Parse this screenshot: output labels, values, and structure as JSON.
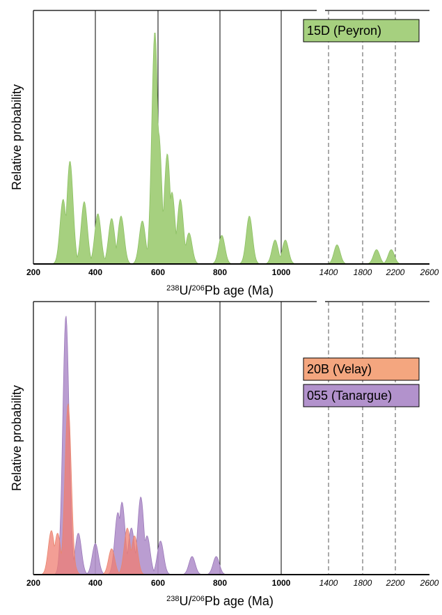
{
  "colors": {
    "peyron": "#a6d07f",
    "velay": "#f4a67f",
    "tanargue": "#b292cc",
    "velay_fill": "#ef7d72",
    "axis": "#000000"
  },
  "chart_data": [
    {
      "type": "area",
      "ylabel": "Relative probability",
      "xlabel_parts": [
        "238",
        "U/",
        "206",
        "Pb age (Ma)"
      ],
      "tick_labels_bold": [
        "200",
        "400",
        "600",
        "800",
        "1000"
      ],
      "tick_labels_italic": [
        "1400",
        "1800",
        "2200",
        "2600"
      ],
      "legend": [
        "15D (Peyron)"
      ],
      "series": [
        {
          "name": "15D (Peyron)",
          "peaks": [
            {
              "x": 296,
              "h": 0.27
            },
            {
              "x": 318,
              "h": 0.43
            },
            {
              "x": 364,
              "h": 0.26
            },
            {
              "x": 408,
              "h": 0.21
            },
            {
              "x": 452,
              "h": 0.19
            },
            {
              "x": 482,
              "h": 0.2
            },
            {
              "x": 550,
              "h": 0.18
            },
            {
              "x": 590,
              "h": 0.97
            },
            {
              "x": 602,
              "h": 0.55
            },
            {
              "x": 630,
              "h": 0.46
            },
            {
              "x": 645,
              "h": 0.3
            },
            {
              "x": 672,
              "h": 0.27
            },
            {
              "x": 700,
              "h": 0.13
            },
            {
              "x": 806,
              "h": 0.12
            },
            {
              "x": 896,
              "h": 0.2
            },
            {
              "x": 980,
              "h": 0.1
            },
            {
              "x": 1035,
              "h": 0.1
            },
            {
              "x": 1500,
              "h": 0.08
            },
            {
              "x": 1970,
              "h": 0.06
            },
            {
              "x": 2150,
              "h": 0.06
            }
          ]
        }
      ]
    },
    {
      "type": "area",
      "ylabel": "Relative probability",
      "xlabel_parts": [
        "238",
        "U/",
        "206",
        "Pb age (Ma)"
      ],
      "tick_labels_bold": [
        "200",
        "400",
        "600",
        "800",
        "1000"
      ],
      "tick_labels_italic": [
        "1400",
        "1800",
        "2200",
        "2600"
      ],
      "legend": [
        "20B (Velay)",
        "055 (Tanargue)"
      ],
      "series": [
        {
          "name": "055 (Tanargue)",
          "peaks": [
            {
              "x": 305,
              "h": 1.0
            },
            {
              "x": 345,
              "h": 0.16
            },
            {
              "x": 400,
              "h": 0.12
            },
            {
              "x": 472,
              "h": 0.24
            },
            {
              "x": 485,
              "h": 0.28
            },
            {
              "x": 515,
              "h": 0.18
            },
            {
              "x": 545,
              "h": 0.3
            },
            {
              "x": 565,
              "h": 0.15
            },
            {
              "x": 608,
              "h": 0.13
            },
            {
              "x": 710,
              "h": 0.07
            },
            {
              "x": 788,
              "h": 0.07
            }
          ]
        },
        {
          "name": "20B (Velay)",
          "peaks": [
            {
              "x": 258,
              "h": 0.17
            },
            {
              "x": 278,
              "h": 0.16
            },
            {
              "x": 312,
              "h": 0.66
            },
            {
              "x": 322,
              "h": 0.1
            },
            {
              "x": 452,
              "h": 0.1
            },
            {
              "x": 502,
              "h": 0.18
            },
            {
              "x": 525,
              "h": 0.15
            }
          ]
        }
      ]
    }
  ]
}
